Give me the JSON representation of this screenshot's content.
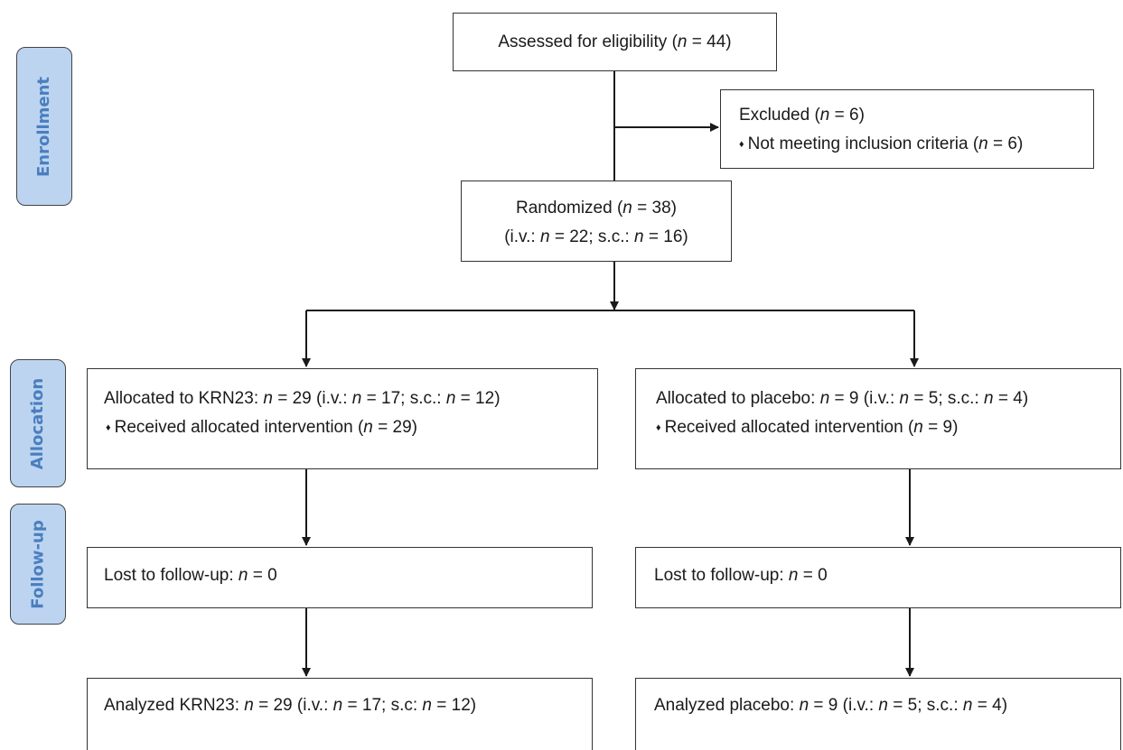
{
  "stages": {
    "enrollment": "Enrollment",
    "allocation": "Allocation",
    "followup": "Follow-up"
  },
  "n_symbol": "n",
  "bullet_glyph": "♦",
  "assessed": {
    "prefix": "Assessed for eligibility (",
    "suffix": " = 44)"
  },
  "excluded": {
    "line1_prefix": "Excluded (",
    "line1_suffix": " = 6)",
    "line2_prefix": "Not meeting inclusion criteria (",
    "line2_suffix": " = 6)"
  },
  "randomized": {
    "line1_prefix": "Randomized (",
    "line1_suffix": " = 38)",
    "line2_a": "(i.v.: ",
    "line2_b": " = 22; s.c.: ",
    "line2_c": " = 16)"
  },
  "alloc_krn23": {
    "line1_a": "Allocated to KRN23: ",
    "line1_b": " = 29 (i.v.: ",
    "line1_c": " = 17; s.c.: ",
    "line1_d": " = 12)",
    "line2_a": "Received allocated intervention (",
    "line2_b": " = 29)"
  },
  "alloc_placebo": {
    "line1_a": "Allocated to placebo: ",
    "line1_b": " = 9 (i.v.: ",
    "line1_c": " = 5; s.c.: ",
    "line1_d": " = 4)",
    "line2_a": "Received allocated intervention (",
    "line2_b": " = 9)"
  },
  "lost_krn23": {
    "prefix": "Lost to follow-up: ",
    "suffix": " = 0"
  },
  "lost_placebo": {
    "prefix": "Lost to follow-up: ",
    "suffix": " = 0"
  },
  "analyzed_krn23": {
    "a": "Analyzed KRN23: ",
    "b": " = 29 (i.v.: ",
    "c": " = 17; s.c: ",
    "d": " = 12)"
  },
  "analyzed_placebo": {
    "a": "Analyzed placebo: ",
    "b": " = 9 (i.v.: ",
    "c": " = 5; s.c.: ",
    "d": " = 4)"
  }
}
